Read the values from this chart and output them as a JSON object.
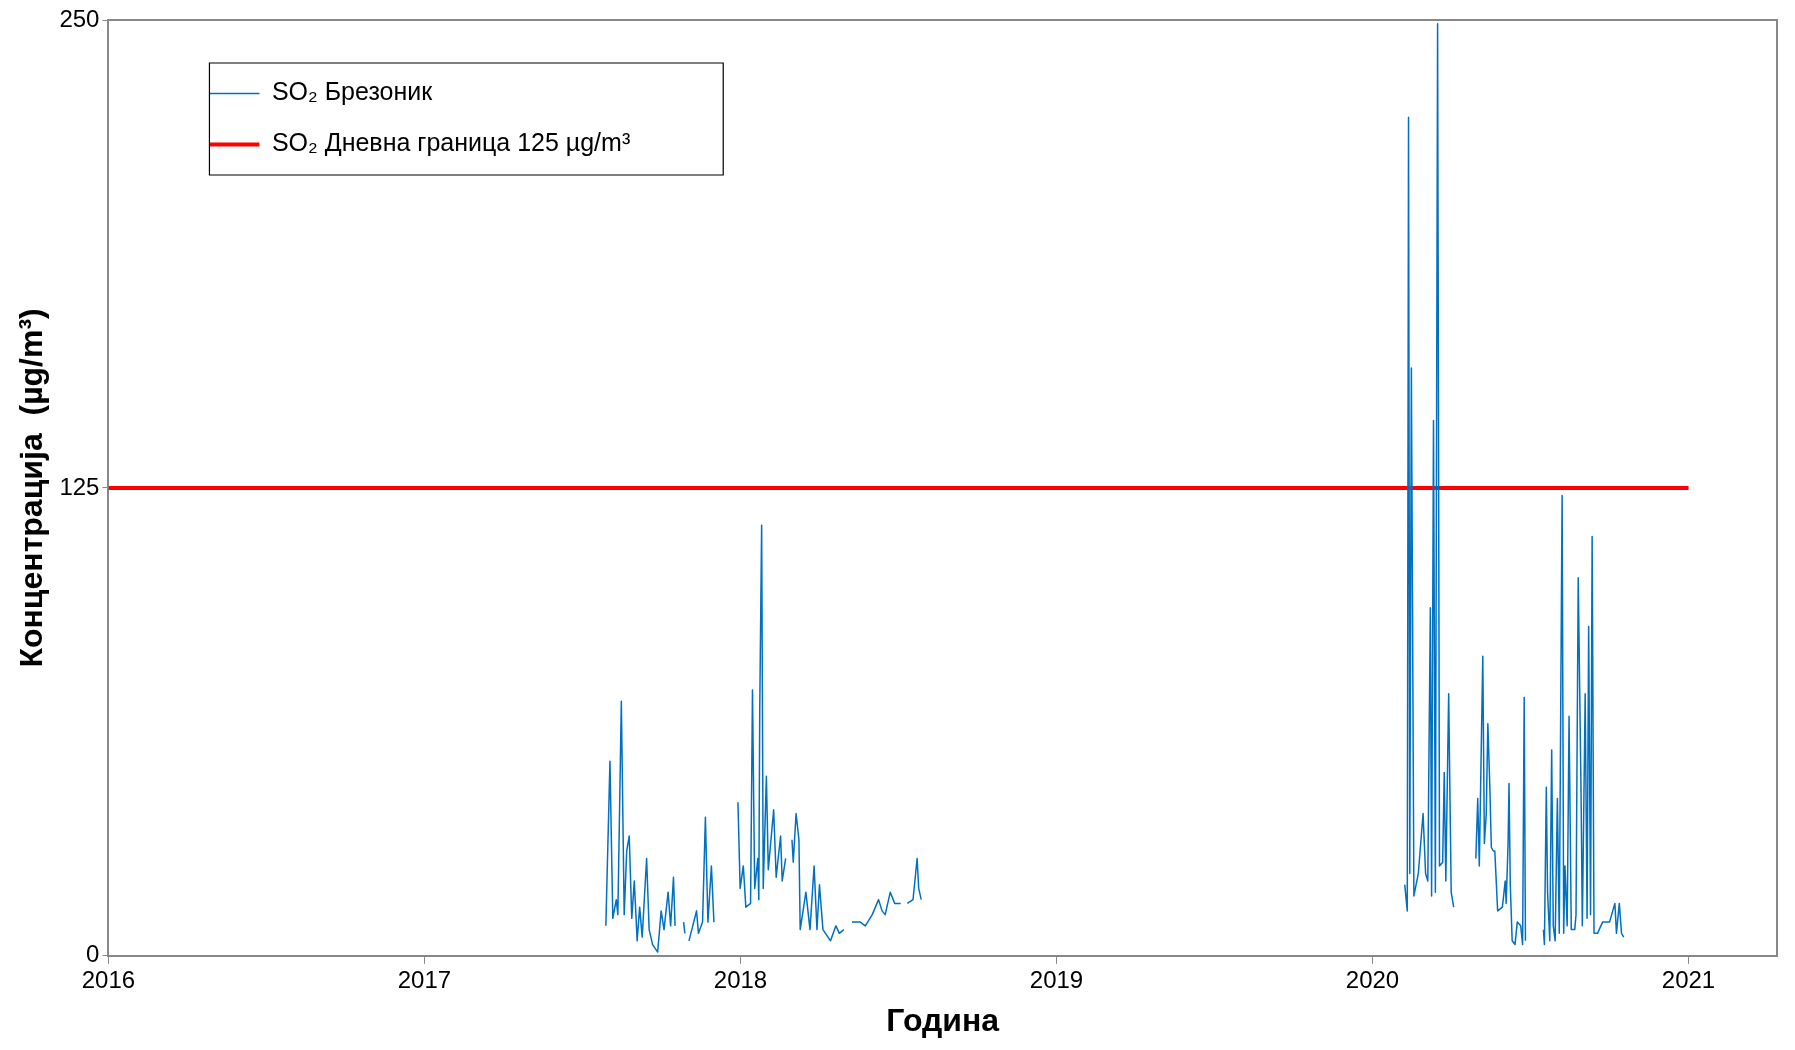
{
  "chart_data": {
    "type": "line",
    "xlabel": "Година",
    "ylabel": "Концентрација  (µg/m³)",
    "xlim": [
      2016,
      2021.28
    ],
    "xticks": [
      2016,
      2017,
      2018,
      2019,
      2020,
      2021
    ],
    "ylim": [
      0,
      250
    ],
    "yticks": [
      0,
      125,
      250
    ],
    "grid": false,
    "legend": "top left",
    "marker": "none",
    "series": [
      {
        "name": "SO₂ Брезоник",
        "color": "#0070c0",
        "x": [
          2017.574,
          2017.587,
          2017.596,
          2017.607,
          2017.612,
          2017.623,
          2017.632,
          2017.64,
          2017.648,
          2017.656,
          2017.664,
          2017.673,
          2017.681,
          2017.689,
          2017.703,
          2017.711,
          2017.722,
          2017.738,
          2017.749,
          2017.758,
          2017.771,
          2017.779,
          2017.788,
          2017.793,
          2017.806,
          2017.82,
          2017.824,
          2017.83,
          2017.837,
          2017.861,
          2017.867,
          2017.88,
          2017.889,
          2017.897,
          2017.908,
          2017.916,
          2017.95,
          2017.992,
          2017.999,
          2018.009,
          2018.017,
          2018.032,
          2018.038,
          2018.045,
          2018.055,
          2018.058,
          2018.061,
          2018.067,
          2018.072,
          2018.082,
          2018.088,
          2018.105,
          2018.113,
          2018.127,
          2018.132,
          2018.143,
          2018.153,
          2018.163,
          2018.167,
          2018.176,
          2018.185,
          2018.189,
          2018.207,
          2018.22,
          2018.233,
          2018.242,
          2018.25,
          2018.261,
          2018.285,
          2018.302,
          2018.313,
          2018.327,
          2018.34,
          2018.353,
          2018.379,
          2018.395,
          2018.417,
          2018.437,
          2018.448,
          2018.458,
          2018.474,
          2018.488,
          2018.507,
          2018.518,
          2018.528,
          2018.546,
          2018.559,
          2018.564,
          2018.572,
          2019.3,
          2020.102,
          2020.11,
          2020.114,
          2020.118,
          2020.123,
          2020.131,
          2020.145,
          2020.16,
          2020.168,
          2020.175,
          2020.183,
          2020.187,
          2020.193,
          2020.199,
          2020.206,
          2020.212,
          2020.222,
          2020.227,
          2020.232,
          2020.241,
          2020.249,
          2020.257,
          2020.29,
          2020.327,
          2020.333,
          2020.338,
          2020.349,
          2020.354,
          2020.36,
          2020.365,
          2020.371,
          2020.376,
          2020.382,
          2020.387,
          2020.396,
          2020.411,
          2020.42,
          2020.423,
          2020.429,
          2020.432,
          2020.436,
          2020.442,
          2020.451,
          2020.458,
          2020.469,
          2020.475,
          2020.48,
          2020.484,
          2020.51,
          2020.541,
          2020.544,
          2020.55,
          2020.554,
          2020.561,
          2020.567,
          2020.572,
          2020.578,
          2020.585,
          2020.591,
          2020.6,
          2020.605,
          2020.609,
          2020.616,
          2020.622,
          2020.629,
          2020.64,
          2020.644,
          2020.651,
          2020.66,
          2020.664,
          2020.673,
          2020.679,
          2020.684,
          2020.69,
          2020.695,
          2020.701,
          2020.712,
          2020.728,
          2020.75,
          2020.767,
          2020.772,
          2020.781,
          2020.788,
          2020.795
        ],
        "values": [
          8,
          52,
          10,
          15,
          11,
          68,
          11,
          28,
          32,
          10,
          20,
          4,
          13,
          5,
          26,
          7,
          3,
          1,
          12,
          7,
          17,
          8,
          21,
          8,
          null,
          9,
          6,
          null,
          4,
          12,
          6,
          9,
          37,
          9,
          24,
          9,
          null,
          41,
          18,
          24,
          13,
          14,
          71,
          18,
          26,
          15,
          66,
          115,
          18,
          48,
          23,
          39,
          21,
          32,
          20,
          26,
          null,
          31,
          25,
          38,
          31,
          7,
          17,
          7,
          24,
          7,
          19,
          7,
          4,
          8,
          6,
          7,
          null,
          9,
          9,
          8,
          11,
          15,
          12,
          11,
          17,
          14,
          14,
          null,
          14,
          15,
          26,
          18,
          15,
          null,
          19,
          12,
          224,
          22,
          157,
          16,
          22,
          38,
          22,
          20,
          93,
          16,
          143,
          17,
          249,
          24,
          25,
          49,
          20,
          70,
          17,
          13,
          null,
          26,
          42,
          24,
          80,
          30,
          38,
          62,
          46,
          29,
          28,
          28,
          12,
          13,
          20,
          14,
          30,
          46,
          19,
          4,
          3,
          9,
          8,
          3,
          69,
          4,
          null,
          7,
          3,
          45,
          17,
          4,
          55,
          8,
          4,
          42,
          6,
          123,
          6,
          24,
          8,
          64,
          7,
          7,
          11,
          101,
          43,
          8,
          70,
          10,
          88,
          11,
          112,
          6,
          6,
          9,
          9,
          14,
          6,
          14,
          6,
          5
        ]
      },
      {
        "name": "SO₂ Дневна граница 125 µg/m³",
        "color": "#ff0000",
        "x": [
          2016,
          2021
        ],
        "values": [
          125,
          125
        ]
      }
    ]
  }
}
